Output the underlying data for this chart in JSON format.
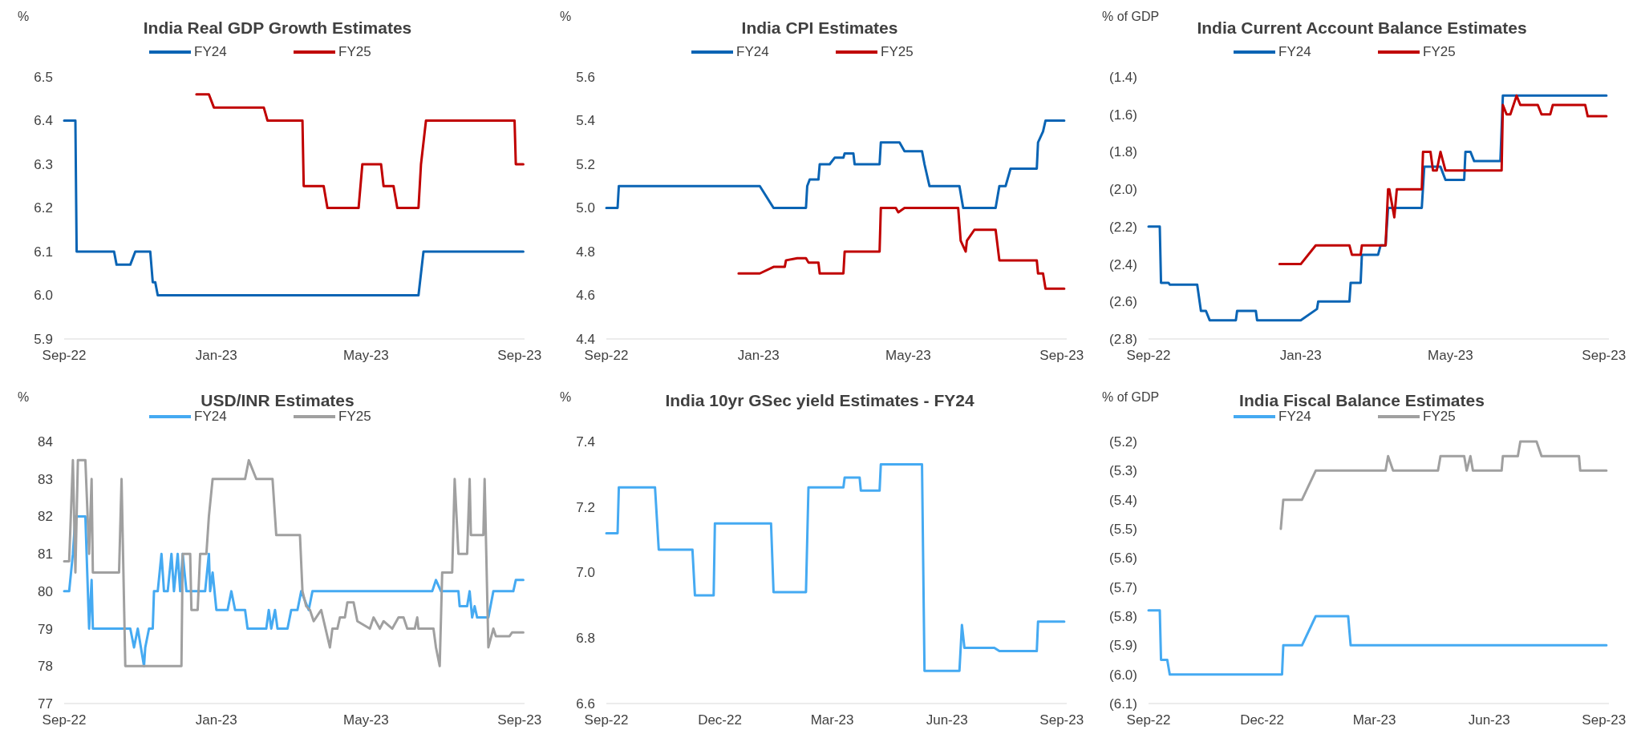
{
  "chart_data": [
    {
      "type": "line",
      "title": "India Real GDP Growth Estimates",
      "ylabel": "%",
      "legend": "top",
      "xlim": [
        "2022-09-01",
        "2023-09-05"
      ],
      "xticks": [
        {
          "value": "2022-09-01",
          "label": "Sep-22"
        },
        {
          "value": "2023-01-01",
          "label": "Jan-23"
        },
        {
          "value": "2023-05-01",
          "label": "May-23"
        },
        {
          "value": "2023-09-01",
          "label": "Sep-23"
        }
      ],
      "ylim": [
        5.9,
        6.5
      ],
      "yticks": [
        5.9,
        {
          "value": 6,
          "label": "6.0"
        },
        6.1,
        6.2,
        6.3,
        6.4,
        6.5
      ],
      "series": [
        {
          "name": "FY24",
          "color": "#0a64b4",
          "x": [
            "2022-09-01",
            "2022-09-10",
            "2022-09-11",
            "2022-10-11",
            "2022-10-13",
            "2022-10-24",
            "2022-10-28",
            "2022-11-09",
            "2022-11-11",
            "2022-11-13",
            "2022-11-15",
            "2023-06-12",
            "2023-06-16",
            "2023-09-04"
          ],
          "values": [
            6.4,
            6.4,
            6.1,
            6.1,
            6.07,
            6.07,
            6.1,
            6.1,
            6.03,
            6.03,
            6.0,
            6.0,
            6.1,
            6.1
          ]
        },
        {
          "name": "FY25",
          "color": "#c00000",
          "x": [
            "2022-12-16",
            "2022-12-26",
            "2022-12-30",
            "2023-02-08",
            "2023-02-11",
            "2023-03-11",
            "2023-03-12",
            "2023-03-28",
            "2023-03-31",
            "2023-04-25",
            "2023-04-28",
            "2023-05-13",
            "2023-05-15",
            "2023-05-23",
            "2023-05-26",
            "2023-06-12",
            "2023-06-14",
            "2023-06-16",
            "2023-06-18",
            "2023-08-28",
            "2023-08-29",
            "2023-09-04"
          ],
          "values": [
            6.46,
            6.46,
            6.43,
            6.43,
            6.4,
            6.4,
            6.25,
            6.25,
            6.2,
            6.2,
            6.3,
            6.3,
            6.25,
            6.25,
            6.2,
            6.2,
            6.3,
            6.35,
            6.4,
            6.4,
            6.3,
            6.3
          ]
        }
      ]
    },
    {
      "type": "line",
      "title": "India CPI Estimates",
      "ylabel": "%",
      "legend": "top",
      "xlim": [
        "2022-09-01",
        "2023-09-05"
      ],
      "xticks": [
        {
          "value": "2022-09-01",
          "label": "Sep-22"
        },
        {
          "value": "2023-01-01",
          "label": "Jan-23"
        },
        {
          "value": "2023-05-01",
          "label": "May-23"
        },
        {
          "value": "2023-09-01",
          "label": "Sep-23"
        }
      ],
      "ylim": [
        4.4,
        5.6
      ],
      "yticks": [
        4.4,
        4.6,
        4.8,
        {
          "value": 5,
          "label": "5.0"
        },
        5.2,
        5.4,
        5.6
      ],
      "series": [
        {
          "name": "FY24",
          "color": "#0a64b4",
          "x": [
            "2022-09-01",
            "2022-09-10",
            "2022-09-11",
            "2023-01-02",
            "2023-01-13",
            "2023-02-08",
            "2023-02-09",
            "2023-02-11",
            "2023-02-18",
            "2023-02-19",
            "2023-02-27",
            "2023-03-03",
            "2023-03-10",
            "2023-03-11",
            "2023-03-18",
            "2023-03-19",
            "2023-04-08",
            "2023-04-09",
            "2023-04-24",
            "2023-04-28",
            "2023-05-12",
            "2023-05-14",
            "2023-05-18",
            "2023-06-11",
            "2023-06-14",
            "2023-07-10",
            "2023-07-13",
            "2023-07-18",
            "2023-07-22",
            "2023-08-12",
            "2023-08-13",
            "2023-08-17",
            "2023-08-19",
            "2023-09-03"
          ],
          "values": [
            5.0,
            5.0,
            5.1,
            5.1,
            5.0,
            5.0,
            5.1,
            5.13,
            5.13,
            5.2,
            5.2,
            5.23,
            5.23,
            5.25,
            5.25,
            5.2,
            5.2,
            5.3,
            5.3,
            5.26,
            5.26,
            5.2,
            5.1,
            5.1,
            5.0,
            5.0,
            5.1,
            5.1,
            5.18,
            5.18,
            5.3,
            5.35,
            5.4,
            5.4
          ]
        },
        {
          "name": "FY25",
          "color": "#c00000",
          "x": [
            "2022-12-16",
            "2023-01-02",
            "2023-01-13",
            "2023-01-22",
            "2023-01-23",
            "2023-02-01",
            "2023-02-08",
            "2023-02-10",
            "2023-02-18",
            "2023-02-19",
            "2023-03-10",
            "2023-03-11",
            "2023-04-08",
            "2023-04-09",
            "2023-04-21",
            "2023-04-23",
            "2023-04-28",
            "2023-06-10",
            "2023-06-12",
            "2023-06-16",
            "2023-06-17",
            "2023-06-23",
            "2023-07-10",
            "2023-07-13",
            "2023-08-12",
            "2023-08-13",
            "2023-08-17",
            "2023-08-19",
            "2023-09-03"
          ],
          "values": [
            4.7,
            4.7,
            4.73,
            4.73,
            4.76,
            4.77,
            4.77,
            4.75,
            4.75,
            4.7,
            4.7,
            4.8,
            4.8,
            5.0,
            5.0,
            4.98,
            5.0,
            5.0,
            4.85,
            4.8,
            4.85,
            4.9,
            4.9,
            4.76,
            4.76,
            4.7,
            4.7,
            4.63,
            4.63
          ]
        }
      ]
    },
    {
      "type": "line",
      "title": "India Current Account Balance Estimates",
      "ylabel": "% of GDP",
      "legend": "top",
      "xlim": [
        "2022-09-01",
        "2023-09-05"
      ],
      "xticks": [
        {
          "value": "2022-09-01",
          "label": "Sep-22"
        },
        {
          "value": "2023-01-01",
          "label": "Jan-23"
        },
        {
          "value": "2023-05-01",
          "label": "May-23"
        },
        {
          "value": "2023-09-01",
          "label": "Sep-23"
        }
      ],
      "ylim": [
        -2.8,
        -1.4
      ],
      "yticks": [
        {
          "value": -2.8,
          "label": "(2.8)"
        },
        {
          "value": -2.6,
          "label": "(2.6)"
        },
        {
          "value": -2.4,
          "label": "(2.4)"
        },
        {
          "value": -2.2,
          "label": "(2.2)"
        },
        {
          "value": -2,
          "label": "(2.0)"
        },
        {
          "value": -1.8,
          "label": "(1.8)"
        },
        {
          "value": -1.6,
          "label": "(1.6)"
        },
        {
          "value": -1.4,
          "label": "(1.4)"
        }
      ],
      "series": [
        {
          "name": "FY24",
          "color": "#0a64b4",
          "x": [
            "2022-09-01",
            "2022-09-10",
            "2022-09-11",
            "2022-09-17",
            "2022-09-18",
            "2022-10-10",
            "2022-10-13",
            "2022-10-17",
            "2022-10-20",
            "2022-11-10",
            "2022-11-11",
            "2022-11-26",
            "2022-11-27",
            "2023-01-01",
            "2023-01-14",
            "2023-01-15",
            "2023-02-09",
            "2023-02-10",
            "2023-02-18",
            "2023-02-19",
            "2023-03-04",
            "2023-03-06",
            "2023-03-10",
            "2023-03-12",
            "2023-04-08",
            "2023-04-10",
            "2023-04-23",
            "2023-04-27",
            "2023-05-12",
            "2023-05-13",
            "2023-05-17",
            "2023-05-20",
            "2023-06-10",
            "2023-06-12",
            "2023-06-15",
            "2023-09-03"
          ],
          "values": [
            -2.2,
            -2.2,
            -2.5,
            -2.5,
            -2.51,
            -2.51,
            -2.65,
            -2.65,
            -2.7,
            -2.7,
            -2.65,
            -2.65,
            -2.7,
            -2.7,
            -2.64,
            -2.6,
            -2.6,
            -2.5,
            -2.5,
            -2.35,
            -2.35,
            -2.3,
            -2.3,
            -2.1,
            -2.1,
            -1.88,
            -1.88,
            -1.95,
            -1.95,
            -1.8,
            -1.8,
            -1.85,
            -1.85,
            -1.5,
            -1.5,
            -1.5
          ]
        },
        {
          "name": "FY25",
          "color": "#c00000",
          "x": [
            "2022-12-15",
            "2023-01-01",
            "2023-01-13",
            "2023-02-09",
            "2023-02-11",
            "2023-02-18",
            "2023-02-19",
            "2023-03-10",
            "2023-03-12",
            "2023-03-13",
            "2023-03-17",
            "2023-03-19",
            "2023-04-08",
            "2023-04-09",
            "2023-04-15",
            "2023-04-17",
            "2023-04-20",
            "2023-04-23",
            "2023-04-27",
            "2023-06-11",
            "2023-06-12",
            "2023-06-15",
            "2023-06-18",
            "2023-06-23",
            "2023-06-26",
            "2023-07-10",
            "2023-07-13",
            "2023-07-20",
            "2023-07-22",
            "2023-08-17",
            "2023-08-19",
            "2023-09-03"
          ],
          "values": [
            -2.4,
            -2.4,
            -2.3,
            -2.3,
            -2.35,
            -2.35,
            -2.3,
            -2.3,
            -2.0,
            -2.0,
            -2.15,
            -2.0,
            -2.0,
            -1.8,
            -1.8,
            -1.9,
            -1.9,
            -1.8,
            -1.9,
            -1.9,
            -1.55,
            -1.6,
            -1.6,
            -1.5,
            -1.55,
            -1.55,
            -1.6,
            -1.6,
            -1.55,
            -1.55,
            -1.61,
            -1.61
          ]
        }
      ]
    },
    {
      "type": "line",
      "title": "USD/INR Estimates",
      "ylabel": "%",
      "legend": "top",
      "xlim": [
        "2022-09-01",
        "2023-09-05"
      ],
      "xticks": [
        {
          "value": "2022-09-01",
          "label": "Sep-22"
        },
        {
          "value": "2023-01-01",
          "label": "Jan-23"
        },
        {
          "value": "2023-05-01",
          "label": "May-23"
        },
        {
          "value": "2023-09-01",
          "label": "Sep-23"
        }
      ],
      "ylim": [
        77,
        84
      ],
      "yticks": [
        77,
        78,
        79,
        80,
        81,
        82,
        83,
        84
      ],
      "series": [
        {
          "name": "FY24",
          "color": "#45aaf2",
          "x": [
            "2022-09-01",
            "2022-09-05",
            "2022-09-08",
            "2022-09-10",
            "2022-09-18",
            "2022-09-21",
            "2022-09-23",
            "2022-09-24",
            "2022-10-24",
            "2022-10-27",
            "2022-10-30",
            "2022-11-04",
            "2022-11-05",
            "2022-11-08",
            "2022-11-11",
            "2022-11-12",
            "2022-11-15",
            "2022-11-18",
            "2022-11-20",
            "2022-11-23",
            "2022-11-26",
            "2022-11-28",
            "2022-12-01",
            "2022-12-03",
            "2022-12-05",
            "2022-12-08",
            "2022-12-23",
            "2022-12-26",
            "2022-12-27",
            "2022-12-29",
            "2023-01-01",
            "2023-01-10",
            "2023-01-13",
            "2023-01-16",
            "2023-01-24",
            "2023-01-26",
            "2023-02-10",
            "2023-02-12",
            "2023-02-14",
            "2023-02-17",
            "2023-02-19",
            "2023-02-27",
            "2023-03-02",
            "2023-03-07",
            "2023-03-10",
            "2023-03-16",
            "2023-03-19",
            "2023-06-23",
            "2023-06-26",
            "2023-06-30",
            "2023-07-14",
            "2023-07-15",
            "2023-07-21",
            "2023-07-23",
            "2023-07-25",
            "2023-07-27",
            "2023-07-29",
            "2023-08-07",
            "2023-08-11",
            "2023-08-27",
            "2023-08-29",
            "2023-09-04"
          ],
          "values": [
            80,
            80,
            81,
            82,
            82,
            79,
            80.3,
            79,
            79,
            78.5,
            79,
            78,
            78.5,
            79,
            79,
            80,
            80,
            81,
            80,
            80,
            81,
            80,
            81,
            80,
            81,
            80,
            80,
            81,
            80,
            80.5,
            79.5,
            79.5,
            80,
            79.5,
            79.5,
            79,
            79,
            79.5,
            79,
            79.5,
            79,
            79,
            79.5,
            79.5,
            80,
            79.5,
            80,
            80,
            80.3,
            80,
            80,
            79.6,
            79.6,
            80,
            79.3,
            79.6,
            79.3,
            79.3,
            80,
            80,
            80.3,
            80.3
          ]
        },
        {
          "name": "FY25",
          "color": "#a0a0a0",
          "x": [
            "2022-09-01",
            "2022-09-05",
            "2022-09-08",
            "2022-09-10",
            "2022-09-12",
            "2022-09-18",
            "2022-09-21",
            "2022-09-23",
            "2022-09-24",
            "2022-10-15",
            "2022-10-17",
            "2022-10-20",
            "2022-12-04",
            "2022-12-05",
            "2022-12-11",
            "2022-12-12",
            "2022-12-17",
            "2022-12-19",
            "2022-12-24",
            "2022-12-26",
            "2022-12-29",
            "2023-01-24",
            "2023-01-27",
            "2023-02-02",
            "2023-02-15",
            "2023-02-18",
            "2023-03-09",
            "2023-03-11",
            "2023-03-14",
            "2023-03-17",
            "2023-03-20",
            "2023-03-26",
            "2023-04-02",
            "2023-04-04",
            "2023-04-08",
            "2023-04-10",
            "2023-04-14",
            "2023-04-16",
            "2023-04-21",
            "2023-04-24",
            "2023-05-04",
            "2023-05-07",
            "2023-05-12",
            "2023-05-15",
            "2023-05-22",
            "2023-05-27",
            "2023-05-31",
            "2023-06-03",
            "2023-06-09",
            "2023-06-11",
            "2023-06-12",
            "2023-06-24",
            "2023-06-26",
            "2023-06-29",
            "2023-07-01",
            "2023-07-09",
            "2023-07-11",
            "2023-07-14",
            "2023-07-21",
            "2023-07-23",
            "2023-07-24",
            "2023-08-03",
            "2023-08-04",
            "2023-08-07",
            "2023-08-11",
            "2023-08-13",
            "2023-08-24",
            "2023-08-26",
            "2023-09-04"
          ],
          "values": [
            80.8,
            80.8,
            83.5,
            80.5,
            83.5,
            83.5,
            81,
            83,
            80.5,
            80.5,
            83,
            78,
            78,
            81,
            81,
            79.5,
            79.5,
            81,
            81,
            82,
            83,
            83,
            83.5,
            83,
            83,
            81.5,
            81.5,
            80,
            79.6,
            79.5,
            79.2,
            79.5,
            78.5,
            79,
            79,
            79.3,
            79.3,
            79.7,
            79.7,
            79.2,
            79,
            79.3,
            79,
            79.2,
            79,
            79.3,
            79.3,
            79,
            79,
            79.3,
            79,
            79,
            78.5,
            78,
            80.5,
            80.5,
            83,
            81,
            81,
            83,
            81.5,
            81.5,
            83,
            78.5,
            79,
            78.8,
            78.8,
            78.9,
            78.9
          ]
        }
      ]
    },
    {
      "type": "line",
      "title": "India 10yr GSec yield Estimates - FY24",
      "ylabel": "%",
      "xlim": [
        "2022-09-01",
        "2023-09-05"
      ],
      "xticks": [
        {
          "value": "2022-09-01",
          "label": "Sep-22"
        },
        {
          "value": "2022-12-01",
          "label": "Dec-22"
        },
        {
          "value": "2023-03-01",
          "label": "Mar-23"
        },
        {
          "value": "2023-06-01",
          "label": "Jun-23"
        },
        {
          "value": "2023-09-01",
          "label": "Sep-23"
        }
      ],
      "ylim": [
        6.6,
        7.4
      ],
      "yticks": [
        6.6,
        6.8,
        {
          "value": 7,
          "label": "7.0"
        },
        7.2,
        7.4
      ],
      "series": [
        {
          "color": "#45aaf2",
          "x": [
            "2022-09-01",
            "2022-09-10",
            "2022-09-11",
            "2022-10-10",
            "2022-10-13",
            "2022-11-09",
            "2022-11-11",
            "2022-11-26",
            "2022-11-27",
            "2023-01-11",
            "2023-01-13",
            "2023-02-08",
            "2023-02-10",
            "2023-03-10",
            "2023-03-11",
            "2023-03-23",
            "2023-03-24",
            "2023-04-08",
            "2023-04-09",
            "2023-05-12",
            "2023-05-14",
            "2023-06-11",
            "2023-06-13",
            "2023-06-15",
            "2023-07-09",
            "2023-07-13",
            "2023-08-12",
            "2023-08-13",
            "2023-09-03"
          ],
          "values": [
            7.12,
            7.12,
            7.26,
            7.26,
            7.07,
            7.07,
            6.93,
            6.93,
            7.15,
            7.15,
            6.94,
            6.94,
            7.26,
            7.26,
            7.29,
            7.29,
            7.25,
            7.25,
            7.33,
            7.33,
            6.7,
            6.7,
            6.84,
            6.77,
            6.77,
            6.76,
            6.76,
            6.85,
            6.85
          ]
        }
      ]
    },
    {
      "type": "line",
      "title": "India Fiscal Balance Estimates",
      "ylabel": "% of GDP",
      "legend": "top",
      "xlim": [
        "2022-09-01",
        "2023-09-05"
      ],
      "xticks": [
        {
          "value": "2022-09-01",
          "label": "Sep-22"
        },
        {
          "value": "2022-12-01",
          "label": "Dec-22"
        },
        {
          "value": "2023-03-01",
          "label": "Mar-23"
        },
        {
          "value": "2023-06-01",
          "label": "Jun-23"
        },
        {
          "value": "2023-09-01",
          "label": "Sep-23"
        }
      ],
      "ylim": [
        -6.1,
        -5.2
      ],
      "yticks": [
        {
          "value": -6.1,
          "label": "(6.1)"
        },
        {
          "value": -6,
          "label": "(6.0)"
        },
        {
          "value": -5.9,
          "label": "(5.9)"
        },
        {
          "value": -5.8,
          "label": "(5.8)"
        },
        {
          "value": -5.7,
          "label": "(5.7)"
        },
        {
          "value": -5.6,
          "label": "(5.6)"
        },
        {
          "value": -5.5,
          "label": "(5.5)"
        },
        {
          "value": -5.4,
          "label": "(5.4)"
        },
        {
          "value": -5.3,
          "label": "(5.3)"
        },
        {
          "value": -5.2,
          "label": "(5.2)"
        }
      ],
      "series": [
        {
          "name": "FY24",
          "color": "#45aaf2",
          "x": [
            "2022-09-01",
            "2022-09-10",
            "2022-09-11",
            "2022-09-16",
            "2022-09-18",
            "2022-12-17",
            "2022-12-18",
            "2023-01-02",
            "2023-01-13",
            "2023-02-08",
            "2023-02-10",
            "2023-09-03"
          ],
          "values": [
            -5.78,
            -5.78,
            -5.95,
            -5.95,
            -6.0,
            -6.0,
            -5.9,
            -5.9,
            -5.8,
            -5.8,
            -5.9,
            -5.9
          ]
        },
        {
          "name": "FY25",
          "color": "#a0a0a0",
          "x": [
            "2022-12-16",
            "2022-12-18",
            "2023-01-02",
            "2023-01-13",
            "2023-03-10",
            "2023-03-12",
            "2023-03-16",
            "2023-04-21",
            "2023-04-23",
            "2023-05-12",
            "2023-05-14",
            "2023-05-17",
            "2023-05-19",
            "2023-06-11",
            "2023-06-12",
            "2023-06-24",
            "2023-06-26",
            "2023-07-09",
            "2023-07-13",
            "2023-08-12",
            "2023-08-13",
            "2023-09-03"
          ],
          "values": [
            -5.5,
            -5.4,
            -5.4,
            -5.3,
            -5.3,
            -5.25,
            -5.3,
            -5.3,
            -5.25,
            -5.25,
            -5.3,
            -5.25,
            -5.3,
            -5.3,
            -5.25,
            -5.25,
            -5.2,
            -5.2,
            -5.25,
            -5.25,
            -5.3,
            -5.3
          ]
        }
      ]
    }
  ]
}
